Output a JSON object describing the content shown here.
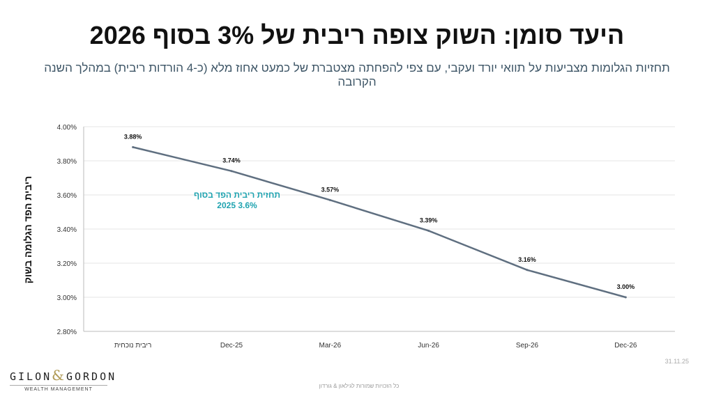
{
  "title": "היעד סומן: השוק צופה ריבית של 3% בסוף 2026",
  "subtitle": "תחזיות הגלומות מצביעות על תוואי יורד ועקבי, עם צפי להפחתה מצטברת של כמעט אחוז מלא (כ-4 הורדות ריבית) במהלך השנה הקרובה",
  "annotation": {
    "line1": "תחזית ריבית הפד בסוף",
    "line2": "3.6% 2025"
  },
  "date": "31.11.25",
  "footer": "כל הזכויות שמורות לגילאון & גורדון",
  "logo": {
    "left": "GILON",
    "amp": "&",
    "right": "GORDON",
    "sub": "WEALTH MANAGEMENT"
  },
  "colors": {
    "line": "#5f6f80",
    "annotation": "#1fa3b0"
  },
  "chart_data": {
    "type": "line",
    "title": "",
    "xlabel": "",
    "ylabel": "ריבית הפד הגלומה בשוק",
    "categories": [
      "ריבית נוכחית",
      "Dec-25",
      "Mar-26",
      "Jun-26",
      "Sep-26",
      "Dec-26"
    ],
    "values": [
      3.88,
      3.74,
      3.57,
      3.39,
      3.16,
      3.0
    ],
    "data_labels": [
      "3.88%",
      "3.74%",
      "3.57%",
      "3.39%",
      "3.16%",
      "3.00%"
    ],
    "ylim": [
      2.8,
      4.0
    ],
    "yticks": [
      "2.80%",
      "3.00%",
      "3.20%",
      "3.40%",
      "3.60%",
      "3.80%",
      "4.00%"
    ],
    "grid": true
  }
}
